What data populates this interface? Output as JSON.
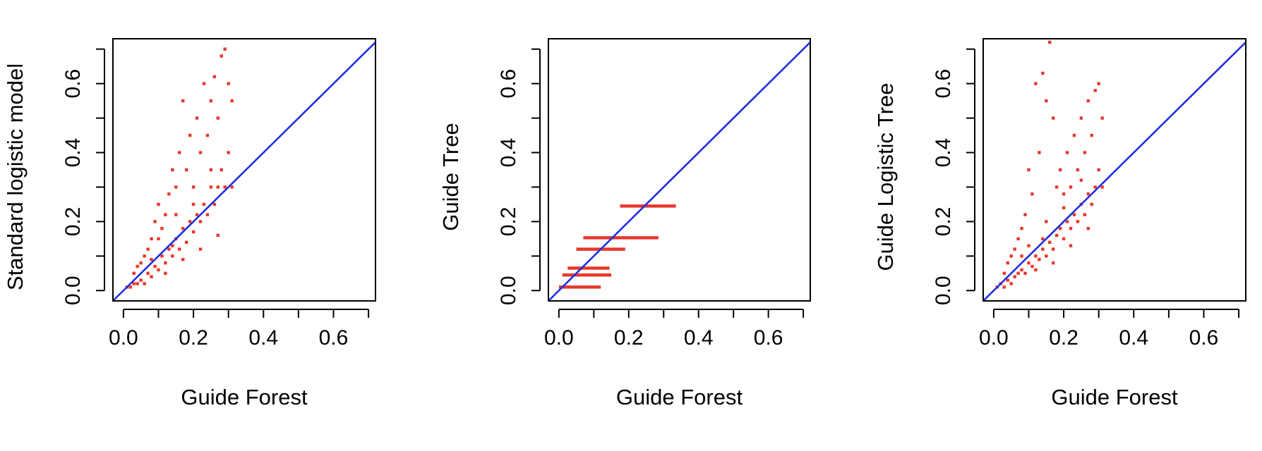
{
  "colors": {
    "points": "#e8382b",
    "diagonal": "#1f2fe0",
    "axis": "#000000"
  },
  "chart_data": [
    {
      "type": "scatter",
      "title": "",
      "xlabel": "Guide Forest",
      "ylabel": "Standard logistic model",
      "xlim": [
        -0.03,
        0.72
      ],
      "ylim": [
        -0.03,
        0.73
      ],
      "xticks": [
        0.0,
        0.1,
        0.2,
        0.3,
        0.4,
        0.5,
        0.6,
        0.7
      ],
      "xtick_labels": [
        "0.0",
        "",
        "0.2",
        "",
        "0.4",
        "",
        "0.6",
        ""
      ],
      "yticks": [
        0.0,
        0.1,
        0.2,
        0.3,
        0.4,
        0.5,
        0.6,
        0.7
      ],
      "ytick_labels": [
        "0.0",
        "",
        "0.2",
        "",
        "0.4",
        "",
        "0.6",
        ""
      ],
      "reference_line": "y = x",
      "points": [
        [
          0.01,
          0.01
        ],
        [
          0.02,
          0.01
        ],
        [
          0.03,
          0.02
        ],
        [
          0.03,
          0.05
        ],
        [
          0.04,
          0.02
        ],
        [
          0.04,
          0.07
        ],
        [
          0.05,
          0.03
        ],
        [
          0.05,
          0.08
        ],
        [
          0.06,
          0.02
        ],
        [
          0.06,
          0.1
        ],
        [
          0.07,
          0.05
        ],
        [
          0.07,
          0.12
        ],
        [
          0.08,
          0.04
        ],
        [
          0.08,
          0.15
        ],
        [
          0.09,
          0.07
        ],
        [
          0.09,
          0.2
        ],
        [
          0.1,
          0.06
        ],
        [
          0.1,
          0.25
        ],
        [
          0.11,
          0.1
        ],
        [
          0.11,
          0.18
        ],
        [
          0.12,
          0.08
        ],
        [
          0.12,
          0.22
        ],
        [
          0.13,
          0.12
        ],
        [
          0.13,
          0.28
        ],
        [
          0.14,
          0.1
        ],
        [
          0.14,
          0.35
        ],
        [
          0.15,
          0.15
        ],
        [
          0.15,
          0.3
        ],
        [
          0.16,
          0.12
        ],
        [
          0.16,
          0.4
        ],
        [
          0.17,
          0.18
        ],
        [
          0.17,
          0.55
        ],
        [
          0.18,
          0.14
        ],
        [
          0.18,
          0.35
        ],
        [
          0.19,
          0.2
        ],
        [
          0.19,
          0.45
        ],
        [
          0.2,
          0.17
        ],
        [
          0.2,
          0.3
        ],
        [
          0.21,
          0.22
        ],
        [
          0.21,
          0.5
        ],
        [
          0.22,
          0.2
        ],
        [
          0.22,
          0.4
        ],
        [
          0.23,
          0.25
        ],
        [
          0.23,
          0.6
        ],
        [
          0.24,
          0.22
        ],
        [
          0.24,
          0.45
        ],
        [
          0.25,
          0.3
        ],
        [
          0.25,
          0.55
        ],
        [
          0.26,
          0.25
        ],
        [
          0.26,
          0.62
        ],
        [
          0.27,
          0.3
        ],
        [
          0.27,
          0.5
        ],
        [
          0.28,
          0.35
        ],
        [
          0.28,
          0.68
        ],
        [
          0.29,
          0.3
        ],
        [
          0.29,
          0.7
        ],
        [
          0.3,
          0.4
        ],
        [
          0.3,
          0.6
        ],
        [
          0.31,
          0.3
        ],
        [
          0.31,
          0.55
        ],
        [
          0.1,
          0.15
        ],
        [
          0.15,
          0.22
        ],
        [
          0.2,
          0.25
        ],
        [
          0.25,
          0.35
        ],
        [
          0.12,
          0.05
        ],
        [
          0.17,
          0.09
        ],
        [
          0.22,
          0.12
        ],
        [
          0.27,
          0.16
        ],
        [
          0.08,
          0.09
        ],
        [
          0.14,
          0.13
        ]
      ]
    },
    {
      "type": "scatter",
      "title": "",
      "xlabel": "Guide Forest",
      "ylabel": "Guide Tree",
      "xlim": [
        -0.03,
        0.72
      ],
      "ylim": [
        -0.03,
        0.73
      ],
      "xticks": [
        0.0,
        0.1,
        0.2,
        0.3,
        0.4,
        0.5,
        0.6,
        0.7
      ],
      "xtick_labels": [
        "0.0",
        "",
        "0.2",
        "",
        "0.4",
        "",
        "0.6",
        ""
      ],
      "yticks": [
        0.0,
        0.1,
        0.2,
        0.3,
        0.4,
        0.5,
        0.6,
        0.7
      ],
      "ytick_labels": [
        "0.0",
        "",
        "0.2",
        "",
        "0.4",
        "",
        "0.6",
        ""
      ],
      "reference_line": "y = x",
      "segments": [
        {
          "y": 0.01,
          "x_from": 0.0,
          "x_to": 0.12
        },
        {
          "y": 0.045,
          "x_from": 0.01,
          "x_to": 0.15
        },
        {
          "y": 0.065,
          "x_from": 0.025,
          "x_to": 0.145
        },
        {
          "y": 0.12,
          "x_from": 0.05,
          "x_to": 0.19
        },
        {
          "y": 0.153,
          "x_from": 0.07,
          "x_to": 0.285
        },
        {
          "y": 0.245,
          "x_from": 0.175,
          "x_to": 0.335
        }
      ]
    },
    {
      "type": "scatter",
      "title": "",
      "xlabel": "Guide Forest",
      "ylabel": "Guide Logistic Tree",
      "xlim": [
        -0.03,
        0.72
      ],
      "ylim": [
        -0.03,
        0.73
      ],
      "xticks": [
        0.0,
        0.1,
        0.2,
        0.3,
        0.4,
        0.5,
        0.6,
        0.7
      ],
      "xtick_labels": [
        "0.0",
        "",
        "0.2",
        "",
        "0.4",
        "",
        "0.6",
        ""
      ],
      "yticks": [
        0.0,
        0.1,
        0.2,
        0.3,
        0.4,
        0.5,
        0.6,
        0.7
      ],
      "ytick_labels": [
        "0.0",
        "",
        "0.2",
        "",
        "0.4",
        "",
        "0.6",
        ""
      ],
      "reference_line": "y = x",
      "points": [
        [
          0.01,
          0.01
        ],
        [
          0.02,
          0.02
        ],
        [
          0.03,
          0.01
        ],
        [
          0.03,
          0.05
        ],
        [
          0.04,
          0.03
        ],
        [
          0.04,
          0.08
        ],
        [
          0.05,
          0.02
        ],
        [
          0.05,
          0.1
        ],
        [
          0.06,
          0.04
        ],
        [
          0.06,
          0.12
        ],
        [
          0.07,
          0.05
        ],
        [
          0.07,
          0.15
        ],
        [
          0.08,
          0.06
        ],
        [
          0.08,
          0.18
        ],
        [
          0.09,
          0.05
        ],
        [
          0.09,
          0.22
        ],
        [
          0.1,
          0.08
        ],
        [
          0.1,
          0.35
        ],
        [
          0.11,
          0.07
        ],
        [
          0.11,
          0.28
        ],
        [
          0.12,
          0.1
        ],
        [
          0.12,
          0.6
        ],
        [
          0.13,
          0.09
        ],
        [
          0.13,
          0.4
        ],
        [
          0.14,
          0.12
        ],
        [
          0.14,
          0.63
        ],
        [
          0.15,
          0.1
        ],
        [
          0.15,
          0.55
        ],
        [
          0.16,
          0.14
        ],
        [
          0.16,
          0.72
        ],
        [
          0.17,
          0.12
        ],
        [
          0.17,
          0.5
        ],
        [
          0.18,
          0.16
        ],
        [
          0.18,
          0.3
        ],
        [
          0.19,
          0.18
        ],
        [
          0.19,
          0.35
        ],
        [
          0.2,
          0.15
        ],
        [
          0.2,
          0.28
        ],
        [
          0.21,
          0.2
        ],
        [
          0.21,
          0.4
        ],
        [
          0.22,
          0.18
        ],
        [
          0.22,
          0.3
        ],
        [
          0.23,
          0.22
        ],
        [
          0.23,
          0.45
        ],
        [
          0.24,
          0.2
        ],
        [
          0.24,
          0.35
        ],
        [
          0.25,
          0.25
        ],
        [
          0.25,
          0.5
        ],
        [
          0.26,
          0.22
        ],
        [
          0.26,
          0.4
        ],
        [
          0.27,
          0.28
        ],
        [
          0.27,
          0.55
        ],
        [
          0.28,
          0.25
        ],
        [
          0.28,
          0.45
        ],
        [
          0.29,
          0.3
        ],
        [
          0.29,
          0.58
        ],
        [
          0.3,
          0.35
        ],
        [
          0.3,
          0.6
        ],
        [
          0.31,
          0.3
        ],
        [
          0.31,
          0.5
        ],
        [
          0.1,
          0.13
        ],
        [
          0.15,
          0.2
        ],
        [
          0.2,
          0.24
        ],
        [
          0.25,
          0.32
        ],
        [
          0.12,
          0.06
        ],
        [
          0.17,
          0.08
        ],
        [
          0.22,
          0.13
        ],
        [
          0.27,
          0.18
        ],
        [
          0.08,
          0.1
        ],
        [
          0.14,
          0.15
        ]
      ]
    }
  ]
}
